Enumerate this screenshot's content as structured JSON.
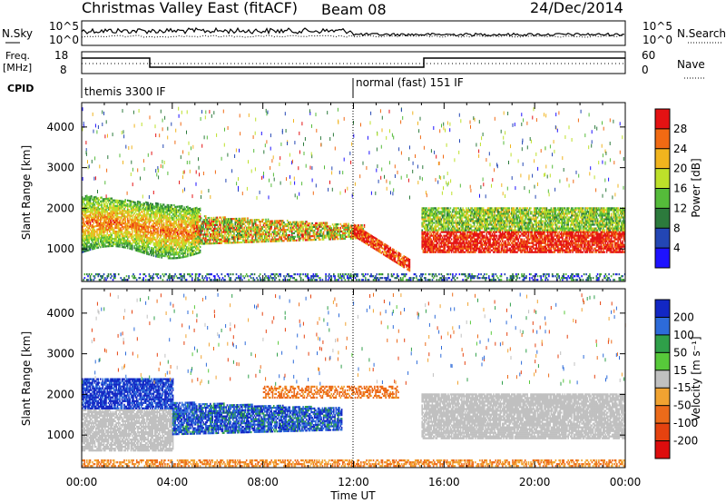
{
  "header": {
    "title_text": "Christmas Valley East (fitACF)",
    "beam_label": "Beam 08",
    "date": "24/Dec/2014"
  },
  "top_panels": {
    "nsky": {
      "label": "N.Sky",
      "scale_hi": "10^5",
      "scale_lo": "10^0",
      "right_hi": "10^5",
      "right_lo": "10^0",
      "right_label": "N.Search"
    },
    "freq": {
      "label_line1": "Freq.",
      "label_line2": "[MHz]",
      "tick_hi": "18",
      "tick_lo": "8",
      "right_hi": "60",
      "right_lo": "0",
      "right_label": "Nave"
    },
    "cpid": {
      "label": "CPID",
      "modes": [
        {
          "name": "themis 3300 IF",
          "start_hour": 0,
          "end_hour": 12
        },
        {
          "name": "normal (fast) 151 IF",
          "start_hour": 12,
          "end_hour": 24
        }
      ]
    }
  },
  "chart_data": [
    {
      "type": "heatmap",
      "panel": "power",
      "ylabel": "Slant Range [km]",
      "xlabel": "",
      "xlim": [
        0,
        24
      ],
      "ylim": [
        200,
        4600
      ],
      "yticks": [
        "1000",
        "2000",
        "3000",
        "4000"
      ],
      "yticks_values": [
        1000,
        2000,
        3000,
        4000
      ],
      "colorbar": {
        "label": "Power [dB]",
        "tick_labels": [
          "4",
          "8",
          "12",
          "16",
          "20",
          "24",
          "28"
        ],
        "colors": [
          "#1e12ff",
          "#2346b4",
          "#2c7a3c",
          "#55bb3a",
          "#bde02a",
          "#f1b41e",
          "#f16a13",
          "#e41213"
        ]
      }
    },
    {
      "type": "heatmap",
      "panel": "velocity",
      "ylabel": "Slant Range [km]",
      "xlabel": "Time UT",
      "xlim": [
        0,
        24
      ],
      "ylim": [
        200,
        4600
      ],
      "yticks": [
        "1000",
        "2000",
        "3000",
        "4000"
      ],
      "yticks_values": [
        1000,
        2000,
        3000,
        4000
      ],
      "xticks": [
        "00:00",
        "04:00",
        "08:00",
        "12:00",
        "16:00",
        "20:00",
        "00:00"
      ],
      "colorbar": {
        "label": "Velocity [m s⁻¹]",
        "tick_labels": [
          "200",
          "100",
          "50",
          "15",
          "-15",
          "-50",
          "-100",
          "-200"
        ],
        "colors": [
          "#1227c4",
          "#2d6bd9",
          "#2f9f49",
          "#57c93a",
          "#c0c0c0",
          "#f1a331",
          "#ec6b1a",
          "#e5420f",
          "#dd0d0d"
        ]
      }
    }
  ],
  "colors": {
    "axis": "#000000",
    "ground_scatter_gray": "#bcbcbc"
  }
}
